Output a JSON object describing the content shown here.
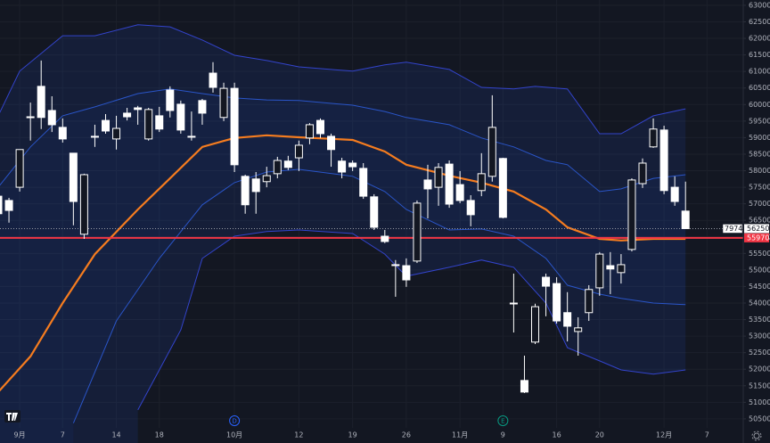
{
  "chart_data": {
    "type": "candlestick",
    "categories": [
      null,
      null,
      "9月",
      null,
      null,
      null,
      "7",
      null,
      null,
      null,
      null,
      "14",
      null,
      null,
      null,
      "18",
      null,
      null,
      null,
      null,
      null,
      null,
      "10月",
      null,
      null,
      null,
      null,
      null,
      "12",
      null,
      null,
      null,
      null,
      "19",
      null,
      null,
      null,
      null,
      "26",
      null,
      null,
      null,
      null,
      "11月",
      null,
      null,
      null,
      "9",
      null,
      null,
      null,
      null,
      "16",
      null,
      null,
      null,
      "20",
      null,
      null,
      null,
      null,
      null,
      "12月",
      null,
      null,
      null,
      "7"
    ],
    "open": [
      57230,
      57100,
      57500,
      59610,
      60550,
      59820,
      59310,
      58530,
      56080,
      59040,
      59520,
      58960,
      59740,
      59900,
      58960,
      59660,
      60440,
      60010,
      59040,
      60120,
      60950,
      59610,
      60490,
      57830,
      57750,
      57670,
      57910,
      58290,
      58390,
      58990,
      59520,
      59040,
      58290,
      58230,
      58070,
      57210,
      56020,
      55160,
      55130,
      55270,
      57720,
      57500,
      58200,
      57580,
      57100,
      57400,
      57830,
      58370,
      54000,
      51660,
      52820,
      54780,
      54590,
      53710,
      53140,
      53710,
      54460,
      55130,
      54920,
      55620,
      57610,
      58720,
      59230,
      57500,
      56780,
      null,
      null
    ],
    "high": [
      57370,
      57180,
      58640,
      60060,
      61330,
      60250,
      59580,
      58530,
      57910,
      59390,
      59710,
      59660,
      59900,
      59960,
      59900,
      59930,
      60550,
      60120,
      59790,
      60170,
      61280,
      60660,
      60660,
      57880,
      57960,
      58120,
      58420,
      58450,
      58910,
      59440,
      59580,
      59120,
      58390,
      58310,
      58230,
      57290,
      56210,
      55300,
      55350,
      57100,
      58180,
      58230,
      58310,
      57990,
      57260,
      58530,
      60280,
      58390,
      54890,
      52410,
      53980,
      54890,
      54780,
      54330,
      53570,
      54540,
      55540,
      55540,
      55480,
      57770,
      58370,
      59580,
      59360,
      57830,
      57670,
      null,
      null
    ],
    "low": [
      56560,
      56430,
      57370,
      58910,
      59260,
      59170,
      58850,
      56350,
      55940,
      58720,
      59120,
      58640,
      59520,
      59390,
      58910,
      59170,
      59610,
      59120,
      58910,
      59390,
      60360,
      59500,
      57960,
      56700,
      56700,
      57500,
      57770,
      58020,
      57990,
      58800,
      58990,
      58120,
      57770,
      57990,
      57150,
      56210,
      55810,
      54190,
      54490,
      55210,
      56560,
      56940,
      56880,
      57020,
      56320,
      57230,
      57670,
      56560,
      53110,
      51280,
      52760,
      53600,
      53380,
      52840,
      52410,
      53460,
      54220,
      54270,
      54590,
      55560,
      57480,
      58690,
      57290,
      56940,
      56240,
      null,
      null
    ],
    "close": [
      56700,
      56800,
      58640,
      59630,
      59610,
      59390,
      58960,
      57070,
      57880,
      59040,
      59200,
      59280,
      59630,
      59850,
      59850,
      59260,
      59820,
      59230,
      59040,
      59740,
      60520,
      60490,
      58180,
      56970,
      57370,
      57850,
      58310,
      58100,
      58770,
      59390,
      59120,
      58640,
      57960,
      58120,
      57230,
      56290,
      55860,
      55160,
      54700,
      57020,
      57450,
      58100,
      56990,
      57100,
      56670,
      57910,
      59310,
      56590,
      54000,
      51310,
      53890,
      54510,
      53460,
      53300,
      53250,
      54410,
      55480,
      55030,
      55160,
      57720,
      58230,
      59260,
      57400,
      57070,
      56250,
      null,
      null
    ],
    "up_color": "#131722",
    "down_color": "#ffffff",
    "wick_color": "#ffffff",
    "indicators": [
      {
        "color": "#3344cc",
        "x": [
          0,
          2,
          6,
          9,
          13,
          16,
          19,
          22,
          25,
          28,
          33,
          36,
          38,
          42,
          45,
          48,
          50,
          53,
          56,
          58,
          61,
          64
        ],
        "values": [
          59660,
          61010,
          62080,
          62080,
          62410,
          62350,
          61950,
          61490,
          61330,
          61140,
          61010,
          61200,
          61280,
          61060,
          60520,
          60470,
          60550,
          60470,
          59120,
          59120,
          59660,
          59870
        ]
      },
      {
        "color": "#2a55c8",
        "x": [
          0,
          3,
          6,
          9,
          13,
          16,
          19,
          22,
          25,
          28,
          33,
          36,
          38,
          42,
          45,
          48,
          51,
          53,
          56,
          58,
          61,
          64
        ],
        "values": [
          57500,
          58720,
          59660,
          59930,
          60330,
          60470,
          60330,
          60200,
          60140,
          60120,
          59980,
          59790,
          59610,
          59390,
          58990,
          58720,
          58310,
          58180,
          57370,
          57450,
          57770,
          57880
        ]
      },
      {
        "color": "#f57c1f",
        "x": [
          0,
          3,
          6,
          9,
          13,
          16,
          19,
          22,
          25,
          28,
          33,
          36,
          38,
          42,
          45,
          48,
          51,
          53,
          56,
          58,
          61,
          64
        ],
        "values": [
          51310,
          52390,
          54000,
          55480,
          56830,
          57770,
          58720,
          58990,
          59070,
          59010,
          58930,
          58580,
          58180,
          57850,
          57640,
          57370,
          56830,
          56290,
          55940,
          55890,
          55940,
          55940
        ]
      },
      {
        "color": "#2a55c8",
        "x": [
          7,
          11,
          15,
          19,
          22,
          25,
          28,
          33,
          36,
          38,
          42,
          45,
          48,
          51,
          53,
          56,
          58,
          61,
          64
        ],
        "values": [
          50370,
          53460,
          55350,
          56970,
          57640,
          57960,
          58040,
          57830,
          57370,
          56830,
          56210,
          56240,
          56020,
          55350,
          54540,
          54270,
          54140,
          54000,
          53950
        ]
      },
      {
        "color": "#3344cc",
        "x": [
          13,
          17,
          19,
          22,
          25,
          28,
          33,
          36,
          38,
          42,
          45,
          48,
          51,
          53,
          56,
          58,
          61,
          64
        ],
        "values": [
          50770,
          53190,
          55350,
          56020,
          56160,
          56210,
          56100,
          55480,
          54810,
          55080,
          55300,
          55080,
          54000,
          52650,
          52250,
          51980,
          51850,
          51980
        ]
      }
    ],
    "price_lines": [
      {
        "value": 56250,
        "tag": "7974",
        "color": "#9598a1"
      },
      {
        "value": 55970,
        "color": "#f23645"
      }
    ],
    "ylim": [
      49770,
      63160
    ],
    "yticks": [
      63000,
      62500,
      62000,
      61500,
      61000,
      60500,
      60000,
      59500,
      59000,
      58500,
      58000,
      57500,
      57000,
      56500,
      56000,
      55500,
      55000,
      54500,
      54000,
      53500,
      53000,
      52500,
      52000,
      51500,
      51000,
      50500
    ],
    "grid": true,
    "event_markers": [
      {
        "index": 22,
        "label": "D",
        "color": "#2962ff"
      },
      {
        "index": 47,
        "label": "E",
        "color": "#089981"
      }
    ]
  }
}
